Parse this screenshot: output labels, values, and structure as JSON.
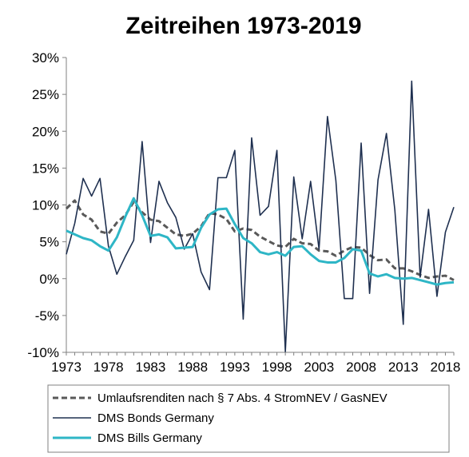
{
  "chart_data": {
    "type": "line",
    "title": "Zeitreihen 1973-2019",
    "xlabel": "",
    "ylabel": "",
    "xlim": [
      1973,
      2019
    ],
    "ylim": [
      -10,
      30
    ],
    "x_ticks": [
      "1973",
      "1978",
      "1983",
      "1988",
      "1993",
      "1998",
      "2003",
      "2008",
      "2013",
      "2018"
    ],
    "y_ticks": [
      "30%",
      "25%",
      "20%",
      "15%",
      "10%",
      "5%",
      "0%",
      "-5%",
      "-10%"
    ],
    "y_tick_values": [
      30,
      25,
      20,
      15,
      10,
      5,
      0,
      -5,
      -10
    ],
    "grid": false,
    "legend_position": "bottom",
    "x": [
      1973,
      1974,
      1975,
      1976,
      1977,
      1978,
      1979,
      1980,
      1981,
      1982,
      1983,
      1984,
      1985,
      1986,
      1987,
      1988,
      1989,
      1990,
      1991,
      1992,
      1993,
      1994,
      1995,
      1996,
      1997,
      1998,
      1999,
      2000,
      2001,
      2002,
      2003,
      2004,
      2005,
      2006,
      2007,
      2008,
      2009,
      2010,
      2011,
      2012,
      2013,
      2014,
      2015,
      2016,
      2017,
      2018,
      2019
    ],
    "series": [
      {
        "name": "Umlaufsrenditen nach § 7 Abs. 4 StromNEV / GasNEV",
        "color": "#595959",
        "style": "dashed",
        "values": [
          9.5,
          10.6,
          8.7,
          8.0,
          6.4,
          6.1,
          7.6,
          8.6,
          10.4,
          9.0,
          8.0,
          7.8,
          6.9,
          6.0,
          5.8,
          6.1,
          7.1,
          8.9,
          8.7,
          8.1,
          6.4,
          6.8,
          6.6,
          5.7,
          5.1,
          4.5,
          4.3,
          5.4,
          4.8,
          4.7,
          3.8,
          3.7,
          3.1,
          3.8,
          4.3,
          4.2,
          3.2,
          2.5,
          2.6,
          1.4,
          1.4,
          1.0,
          0.5,
          0.1,
          0.3,
          0.4,
          -0.2
        ]
      },
      {
        "name": "DMS Bonds Germany",
        "color": "#1f3050",
        "style": "solid",
        "values": [
          3.3,
          7.5,
          13.6,
          11.2,
          13.6,
          4.4,
          0.6,
          3.0,
          5.2,
          18.6,
          4.9,
          13.2,
          10.3,
          8.3,
          4.0,
          6.1,
          0.9,
          -1.5,
          13.7,
          13.7,
          17.4,
          -5.5,
          19.1,
          8.6,
          9.8,
          17.4,
          -9.9,
          13.8,
          5.4,
          13.2,
          4.0,
          22.0,
          13.3,
          -2.7,
          -2.7,
          18.4,
          -2.0,
          13.4,
          19.7,
          9.3,
          -6.2,
          26.8,
          0.2,
          9.4,
          -2.4,
          6.3,
          9.7
        ]
      },
      {
        "name": "DMS Bills Germany",
        "color": "#2eb6c6",
        "style": "solid",
        "values": [
          6.5,
          6.0,
          5.5,
          5.2,
          4.4,
          3.8,
          5.6,
          8.4,
          10.9,
          8.6,
          5.8,
          6.0,
          5.6,
          4.1,
          4.2,
          4.3,
          6.9,
          8.7,
          9.4,
          9.5,
          7.4,
          5.5,
          4.8,
          3.6,
          3.3,
          3.6,
          3.1,
          4.3,
          4.4,
          3.3,
          2.4,
          2.2,
          2.2,
          2.8,
          4.0,
          3.8,
          0.7,
          0.3,
          0.6,
          0.1,
          0.0,
          0.1,
          -0.2,
          -0.5,
          -0.8,
          -0.6,
          -0.5
        ]
      }
    ]
  }
}
